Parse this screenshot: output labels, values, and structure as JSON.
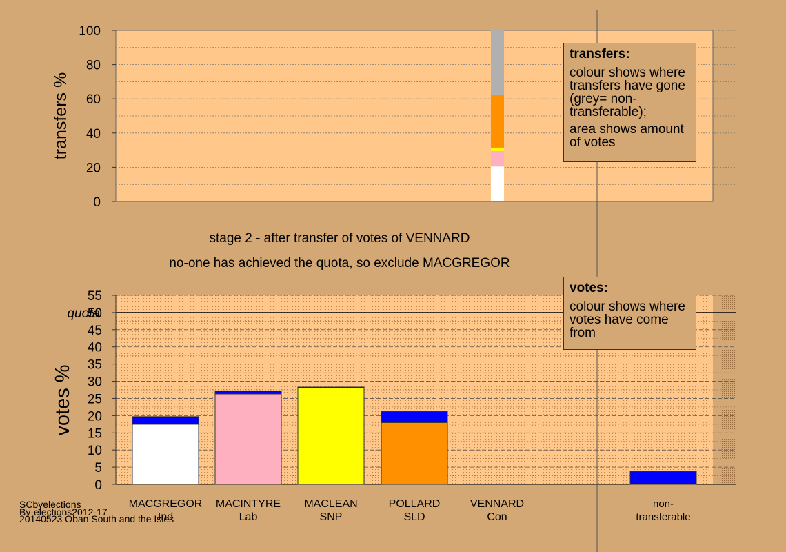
{
  "stage_lines": {
    "line1": "stage 2 - after transfer of votes of VENNARD",
    "line2": "no-one has achieved the quota, so exclude MACGREGOR"
  },
  "transfers_legend": {
    "title": "transfers:",
    "para1": "colour shows where transfers have gone (grey= non-transferable);",
    "para2": "area shows amount of votes"
  },
  "votes_legend": {
    "title": "votes:",
    "para1": "colour shows where votes have come from"
  },
  "credits": {
    "line1": "SCbyelections",
    "line2": "By-elections2012-17",
    "line3": "20140523 Oban South and the Isles"
  },
  "colors": {
    "background": "#d4a874",
    "plot_bg": "#ffc88a",
    "white": "#ffffff",
    "pink": "#ffb0c0",
    "yellow": "#ffff00",
    "orange": "#ff9000",
    "grey": "#b0b0b0",
    "blue": "#0000ff"
  },
  "chart_data": [
    {
      "type": "bar",
      "ylabel": "transfers %",
      "ylim": [
        0,
        100
      ],
      "yticks": [
        0,
        20,
        40,
        60,
        80,
        100
      ],
      "grid": true,
      "stacked_bar": {
        "segments": [
          {
            "name": "MACGREGOR",
            "color": "white",
            "from": 0,
            "to": 20.5
          },
          {
            "name": "MACINTYRE",
            "color": "pink",
            "from": 20.5,
            "to": 29.5
          },
          {
            "name": "MACLEAN",
            "color": "yellow",
            "from": 29.5,
            "to": 31.5
          },
          {
            "name": "POLLARD",
            "color": "orange",
            "from": 31.5,
            "to": 62.5
          },
          {
            "name": "non-transferable",
            "color": "grey",
            "from": 62.5,
            "to": 100
          }
        ]
      }
    },
    {
      "type": "bar",
      "ylabel": "votes %",
      "ylim": [
        0,
        55
      ],
      "yticks": [
        0,
        5,
        10,
        15,
        20,
        25,
        30,
        35,
        40,
        45,
        50,
        55
      ],
      "quota": 50,
      "quota_label": "quota",
      "grid": true,
      "categories": [
        {
          "name": "MACGREGOR",
          "party": "Ind",
          "color": "white",
          "base": 17.5,
          "transfer": 2.2
        },
        {
          "name": "MACINTYRE",
          "party": "Lab",
          "color": "pink",
          "base": 26.3,
          "transfer": 0.9
        },
        {
          "name": "MACLEAN",
          "party": "SNP",
          "color": "yellow",
          "base": 28.0,
          "transfer": 0.3
        },
        {
          "name": "POLLARD",
          "party": "SLD",
          "color": "orange",
          "base": 18.0,
          "transfer": 3.2
        },
        {
          "name": "VENNARD",
          "party": "Con",
          "color": "none",
          "base": 0,
          "transfer": 0
        },
        {
          "name": "non-",
          "party": "transferable",
          "color": "blue",
          "base": 0,
          "transfer": 3.8
        }
      ]
    }
  ]
}
